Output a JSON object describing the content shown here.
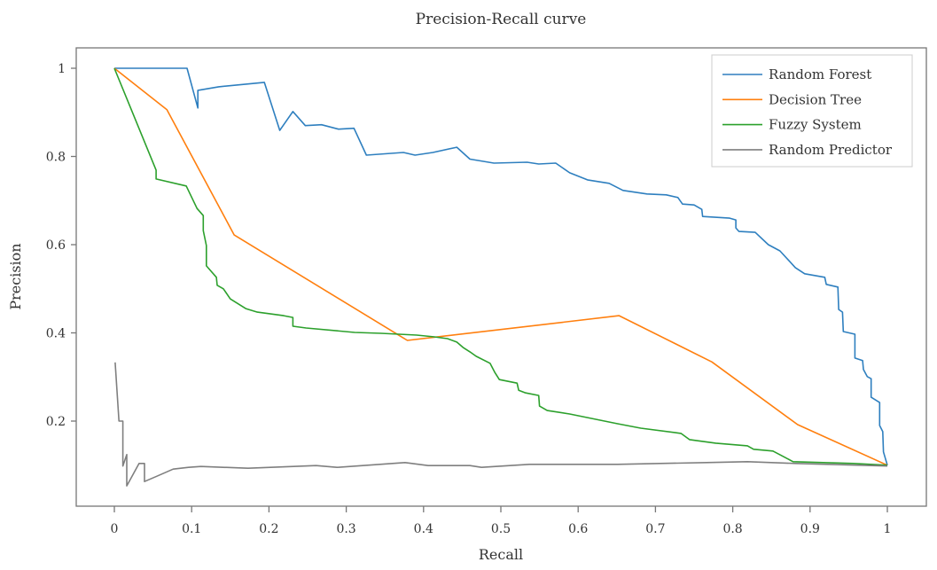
{
  "chart_data": {
    "type": "line",
    "title": "Precision-Recall curve",
    "xlabel": "Recall",
    "ylabel": "Precision",
    "xlim": [
      -0.047,
      1.048
    ],
    "ylim": [
      0.01,
      1.045
    ],
    "xticks": [
      "0",
      "0.1",
      "0.2",
      "0.3",
      "0.4",
      "0.5",
      "0.6",
      "0.7",
      "0.8",
      "0.9",
      "1"
    ],
    "yticks": [
      "0.2",
      "0.4",
      "0.6",
      "0.8",
      "1"
    ],
    "grid": false,
    "legend": "top-right",
    "series": [
      {
        "name": "Random Forest",
        "color": "#2e7fbf",
        "x": [
          0,
          0.094,
          0.108,
          0.108,
          0.135,
          0.194,
          0.214,
          0.231,
          0.247,
          0.268,
          0.29,
          0.31,
          0.326,
          0.374,
          0.389,
          0.412,
          0.443,
          0.46,
          0.491,
          0.534,
          0.549,
          0.571,
          0.589,
          0.612,
          0.64,
          0.658,
          0.689,
          0.714,
          0.729,
          0.735,
          0.75,
          0.76,
          0.761,
          0.796,
          0.804,
          0.804,
          0.808,
          0.829,
          0.846,
          0.861,
          0.881,
          0.893,
          0.919,
          0.921,
          0.936,
          0.937,
          0.942,
          0.943,
          0.958,
          0.958,
          0.968,
          0.969,
          0.974,
          0.979,
          0.979,
          0.99,
          0.99,
          0.994,
          0.995,
          1.0
        ],
        "y": [
          1.0,
          1.0,
          0.91,
          0.95,
          0.958,
          0.968,
          0.859,
          0.902,
          0.87,
          0.872,
          0.862,
          0.864,
          0.803,
          0.809,
          0.803,
          0.809,
          0.821,
          0.794,
          0.785,
          0.787,
          0.783,
          0.785,
          0.763,
          0.747,
          0.739,
          0.723,
          0.715,
          0.713,
          0.707,
          0.692,
          0.69,
          0.68,
          0.664,
          0.66,
          0.656,
          0.638,
          0.63,
          0.628,
          0.6,
          0.586,
          0.548,
          0.534,
          0.526,
          0.51,
          0.504,
          0.453,
          0.447,
          0.403,
          0.397,
          0.343,
          0.337,
          0.317,
          0.301,
          0.296,
          0.254,
          0.242,
          0.19,
          0.176,
          0.13,
          0.1
        ]
      },
      {
        "name": "Decision Tree",
        "color": "#ff7f0e",
        "x": [
          0,
          0.068,
          0.155,
          0.379,
          0.653,
          0.773,
          0.884,
          1.0
        ],
        "y": [
          1.0,
          0.906,
          0.622,
          0.383,
          0.439,
          0.334,
          0.192,
          0.1
        ]
      },
      {
        "name": "Fuzzy System",
        "color": "#2ca02c",
        "x": [
          0,
          0.054,
          0.054,
          0.093,
          0.107,
          0.115,
          0.115,
          0.119,
          0.119,
          0.132,
          0.133,
          0.141,
          0.15,
          0.17,
          0.185,
          0.219,
          0.231,
          0.231,
          0.248,
          0.311,
          0.345,
          0.391,
          0.414,
          0.431,
          0.443,
          0.451,
          0.46,
          0.468,
          0.486,
          0.492,
          0.498,
          0.521,
          0.523,
          0.532,
          0.549,
          0.55,
          0.56,
          0.589,
          0.651,
          0.681,
          0.733,
          0.744,
          0.778,
          0.819,
          0.827,
          0.852,
          0.865,
          0.878,
          0.956,
          1.0
        ],
        "y": [
          1.0,
          0.769,
          0.749,
          0.733,
          0.682,
          0.666,
          0.632,
          0.598,
          0.552,
          0.526,
          0.508,
          0.5,
          0.477,
          0.455,
          0.447,
          0.439,
          0.435,
          0.415,
          0.411,
          0.401,
          0.399,
          0.395,
          0.391,
          0.387,
          0.379,
          0.367,
          0.357,
          0.347,
          0.331,
          0.311,
          0.294,
          0.286,
          0.27,
          0.264,
          0.258,
          0.234,
          0.224,
          0.216,
          0.194,
          0.184,
          0.172,
          0.158,
          0.15,
          0.144,
          0.136,
          0.132,
          0.12,
          0.108,
          0.104,
          0.1
        ]
      },
      {
        "name": "Random Predictor",
        "color": "#7f7f7f",
        "x": [
          0.001,
          0.006,
          0.011,
          0.011,
          0.016,
          0.016,
          0.032,
          0.039,
          0.039,
          0.055,
          0.076,
          0.096,
          0.112,
          0.173,
          0.261,
          0.288,
          0.376,
          0.406,
          0.46,
          0.475,
          0.537,
          0.651,
          0.766,
          0.819,
          0.881,
          1.0
        ],
        "y": [
          0.333,
          0.2,
          0.2,
          0.098,
          0.124,
          0.053,
          0.104,
          0.104,
          0.063,
          0.075,
          0.091,
          0.095,
          0.097,
          0.093,
          0.099,
          0.095,
          0.106,
          0.099,
          0.099,
          0.095,
          0.102,
          0.102,
          0.106,
          0.108,
          0.104,
          0.098
        ]
      }
    ]
  }
}
